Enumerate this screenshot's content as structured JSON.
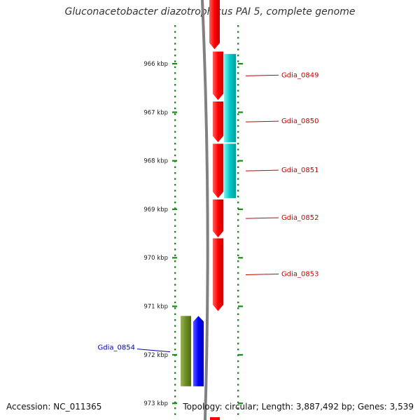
{
  "title": "Gluconacetobacter diazotrophicus PAI 5, complete genome",
  "accession": "Accession: NC_011365",
  "summary": "Topology: circular; Length: 3,887,492 bp; Genes: 3,539",
  "colors": {
    "forward": "#ff0000",
    "reverse": "#0000ff",
    "cds_feature": "#00c8c8",
    "reverse_feature": "#6b8e23",
    "backbone": "#808080",
    "tick": "#1a8a1a",
    "forward_label": "#cc0000",
    "reverse_label": "#0000aa"
  },
  "ticks": [
    {
      "label": "966 kbp",
      "kb": 966
    },
    {
      "label": "967 kbp",
      "kb": 967
    },
    {
      "label": "968 kbp",
      "kb": 968
    },
    {
      "label": "969 kbp",
      "kb": 969
    },
    {
      "label": "970 kbp",
      "kb": 970
    },
    {
      "label": "971 kbp",
      "kb": 971
    },
    {
      "label": "972 kbp",
      "kb": 972
    },
    {
      "label": "973 kbp",
      "kb": 973
    }
  ],
  "genes": [
    {
      "name": "Gdia_0849",
      "strand": "forward",
      "start_kb": 965.75,
      "end_kb": 966.75
    },
    {
      "name": "Gdia_0850",
      "strand": "forward",
      "start_kb": 966.78,
      "end_kb": 967.62
    },
    {
      "name": "Gdia_0851",
      "strand": "forward",
      "start_kb": 967.65,
      "end_kb": 968.77
    },
    {
      "name": "Gdia_0852",
      "strand": "forward",
      "start_kb": 968.8,
      "end_kb": 969.58
    },
    {
      "name": "Gdia_0853",
      "strand": "forward",
      "start_kb": 969.6,
      "end_kb": 971.1
    },
    {
      "name": "Gdia_0854",
      "strand": "reverse",
      "start_kb": 971.2,
      "end_kb": 972.65
    }
  ],
  "partial_forward_feature": {
    "start_kb": 965.0,
    "end_kb": 965.7
  },
  "features": [
    {
      "strand": "forward",
      "start_kb": 965.8,
      "end_kb": 967.62
    },
    {
      "strand": "forward",
      "start_kb": 967.65,
      "end_kb": 968.77
    },
    {
      "strand": "reverse",
      "start_kb": 971.2,
      "end_kb": 972.65
    }
  ]
}
